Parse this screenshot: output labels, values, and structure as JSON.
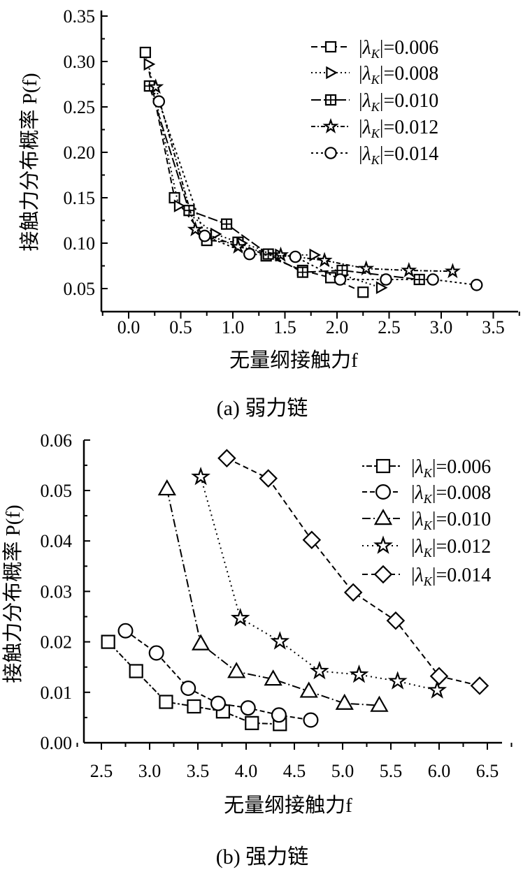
{
  "chart_data": [
    {
      "type": "line",
      "title": "(a) 弱力链",
      "xlabel": "无量纲接触力f",
      "ylabel": "接触力分布概率 P(f)",
      "xlim": [
        -0.25,
        3.75
      ],
      "ylim": [
        0.025,
        0.35
      ],
      "xticks": [
        "0.0",
        "0.5",
        "1.0",
        "1.5",
        "2.0",
        "2.5",
        "3.0",
        "3.5"
      ],
      "yticks": [
        "0.05",
        "0.10",
        "0.15",
        "0.20",
        "0.25",
        "0.30",
        "0.35"
      ],
      "legend_position": "top-right",
      "series": [
        {
          "name": "|λK|=0.006",
          "marker": "square",
          "x": [
            0.16,
            0.44,
            0.75,
            1.05,
            1.32,
            1.67,
            1.94,
            2.25
          ],
          "y": [
            0.31,
            0.15,
            0.103,
            0.101,
            0.086,
            0.07,
            0.062,
            0.046
          ]
        },
        {
          "name": "|λK|=0.008",
          "marker": "triangle-right",
          "x": [
            0.19,
            0.48,
            0.83,
            1.08,
            1.45,
            1.78,
            2.05,
            2.42
          ],
          "y": [
            0.297,
            0.141,
            0.11,
            0.1,
            0.087,
            0.087,
            0.065,
            0.051
          ]
        },
        {
          "name": "|λK|=0.010",
          "marker": "square-plus",
          "x": [
            0.2,
            0.58,
            0.94,
            1.34,
            1.67,
            2.05,
            2.79
          ],
          "y": [
            0.273,
            0.136,
            0.121,
            0.088,
            0.068,
            0.07,
            0.06
          ]
        },
        {
          "name": "|λK|=0.012",
          "marker": "star",
          "x": [
            0.26,
            0.64,
            1.05,
            1.46,
            1.88,
            2.28,
            2.69,
            3.11
          ],
          "y": [
            0.272,
            0.115,
            0.096,
            0.087,
            0.081,
            0.072,
            0.07,
            0.069
          ]
        },
        {
          "name": "|λK|=0.014",
          "marker": "circle",
          "x": [
            0.29,
            0.73,
            1.16,
            1.6,
            2.03,
            2.47,
            2.92,
            3.34
          ],
          "y": [
            0.256,
            0.108,
            0.088,
            0.085,
            0.06,
            0.06,
            0.06,
            0.054
          ]
        }
      ]
    },
    {
      "type": "line",
      "title": "(b) 强力链",
      "xlabel": "无量纲接触力f",
      "ylabel": "接触力分布概率 P(f)",
      "xlim": [
        2.25,
        6.75
      ],
      "ylim": [
        0.0,
        0.06
      ],
      "xticks": [
        "2.5",
        "3.0",
        "3.5",
        "4.0",
        "4.5",
        "5.0",
        "5.5",
        "6.0",
        "6.5"
      ],
      "yticks": [
        "0.00",
        "0.01",
        "0.02",
        "0.03",
        "0.04",
        "0.05",
        "0.06"
      ],
      "legend_position": "top-right",
      "series": [
        {
          "name": "|λK|=0.006",
          "marker": "square",
          "x": [
            2.57,
            2.86,
            3.17,
            3.46,
            3.76,
            4.06,
            4.35
          ],
          "y": [
            0.02,
            0.0142,
            0.0081,
            0.0072,
            0.0062,
            0.0039,
            0.0037
          ]
        },
        {
          "name": "|λK|=0.008",
          "marker": "circle",
          "x": [
            2.75,
            3.07,
            3.4,
            3.71,
            4.02,
            4.34,
            4.67
          ],
          "y": [
            0.0222,
            0.0178,
            0.0108,
            0.0078,
            0.0069,
            0.0055,
            0.0045
          ]
        },
        {
          "name": "|λK|=0.010",
          "marker": "triangle-up",
          "x": [
            3.18,
            3.53,
            3.9,
            4.28,
            4.65,
            5.02,
            5.38
          ],
          "y": [
            0.0503,
            0.0196,
            0.0141,
            0.0126,
            0.0102,
            0.0078,
            0.0074
          ]
        },
        {
          "name": "|λK|=0.012",
          "marker": "star",
          "x": [
            3.53,
            3.94,
            4.35,
            4.76,
            5.17,
            5.57,
            5.98
          ],
          "y": [
            0.0527,
            0.0247,
            0.0201,
            0.0142,
            0.0135,
            0.0122,
            0.0104
          ]
        },
        {
          "name": "|λK|=0.014",
          "marker": "diamond",
          "x": [
            3.8,
            4.23,
            4.68,
            5.11,
            5.55,
            6.0,
            6.42
          ],
          "y": [
            0.0564,
            0.0524,
            0.0402,
            0.0298,
            0.0242,
            0.0132,
            0.0113
          ]
        }
      ]
    }
  ]
}
